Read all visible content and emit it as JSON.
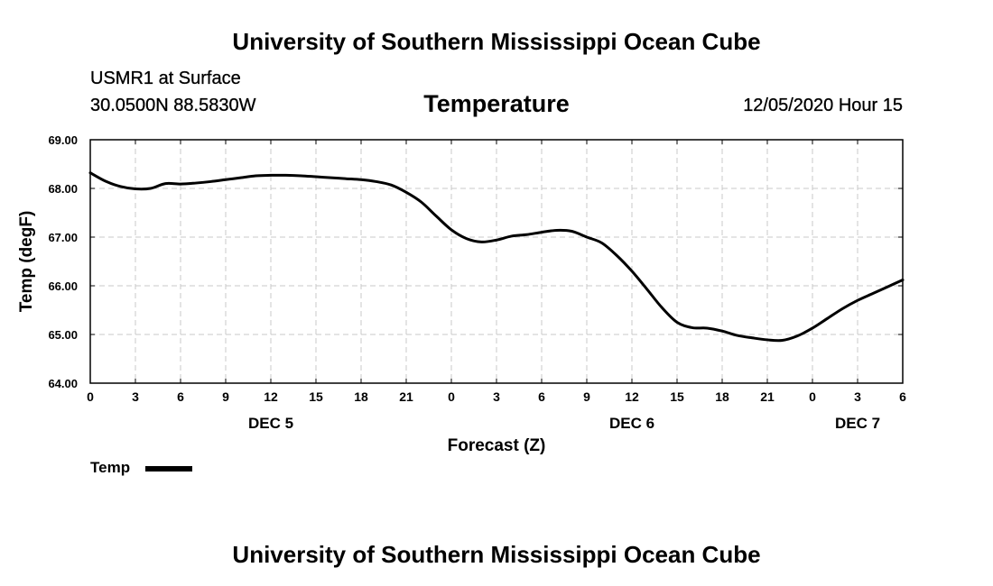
{
  "header": {
    "title": "University of Southern Mississippi Ocean Cube",
    "station": "USMR1 at Surface",
    "coords": "30.0500N 88.5830W",
    "datetime": "12/05/2020 Hour 15",
    "footer": "University of Southern Mississippi Ocean Cube"
  },
  "chart_data": {
    "type": "line",
    "title": "Temperature",
    "xlabel": "Forecast (Z)",
    "ylabel": "Temp (degF)",
    "xlim": [
      0,
      54
    ],
    "ylim": [
      64.0,
      69.0
    ],
    "grid": true,
    "x_ticks": [
      0,
      3,
      6,
      9,
      12,
      15,
      18,
      21,
      24,
      27,
      30,
      33,
      36,
      39,
      42,
      45,
      48,
      51,
      54
    ],
    "x_tick_labels": [
      "0",
      "3",
      "6",
      "9",
      "12",
      "15",
      "18",
      "21",
      "0",
      "3",
      "6",
      "9",
      "12",
      "15",
      "18",
      "21",
      "0",
      "3",
      "6"
    ],
    "y_ticks": [
      64.0,
      65.0,
      66.0,
      67.0,
      68.0,
      69.0
    ],
    "y_tick_labels": [
      "64.00",
      "65.00",
      "66.00",
      "67.00",
      "68.00",
      "69.00"
    ],
    "date_labels": [
      {
        "x": 12,
        "label": "DEC 5"
      },
      {
        "x": 36,
        "label": "DEC 6"
      },
      {
        "x": 51,
        "label": "DEC 7"
      }
    ],
    "legend": {
      "position": "bottom-left",
      "label": "Temp"
    },
    "series": [
      {
        "name": "Temp",
        "color": "#000000",
        "x": [
          0,
          1,
          2,
          3,
          4,
          5,
          6,
          7,
          8,
          9,
          10,
          11,
          12,
          13,
          14,
          15,
          16,
          17,
          18,
          19,
          20,
          21,
          22,
          23,
          24,
          25,
          26,
          27,
          28,
          29,
          30,
          31,
          32,
          33,
          34,
          35,
          36,
          37,
          38,
          39,
          40,
          41,
          42,
          43,
          44,
          45,
          46,
          47,
          48,
          49,
          50,
          51,
          52,
          53,
          54
        ],
        "values": [
          68.32,
          68.15,
          68.04,
          67.99,
          68.0,
          68.1,
          68.09,
          68.11,
          68.14,
          68.18,
          68.22,
          68.26,
          68.27,
          68.27,
          68.26,
          68.24,
          68.22,
          68.2,
          68.18,
          68.14,
          68.07,
          67.92,
          67.72,
          67.43,
          67.15,
          66.97,
          66.9,
          66.94,
          67.02,
          67.05,
          67.1,
          67.14,
          67.12,
          67.0,
          66.88,
          66.62,
          66.3,
          65.93,
          65.55,
          65.25,
          65.14,
          65.13,
          65.07,
          64.98,
          64.93,
          64.89,
          64.88,
          64.97,
          65.13,
          65.33,
          65.53,
          65.7,
          65.84,
          65.98,
          66.12
        ]
      }
    ]
  }
}
